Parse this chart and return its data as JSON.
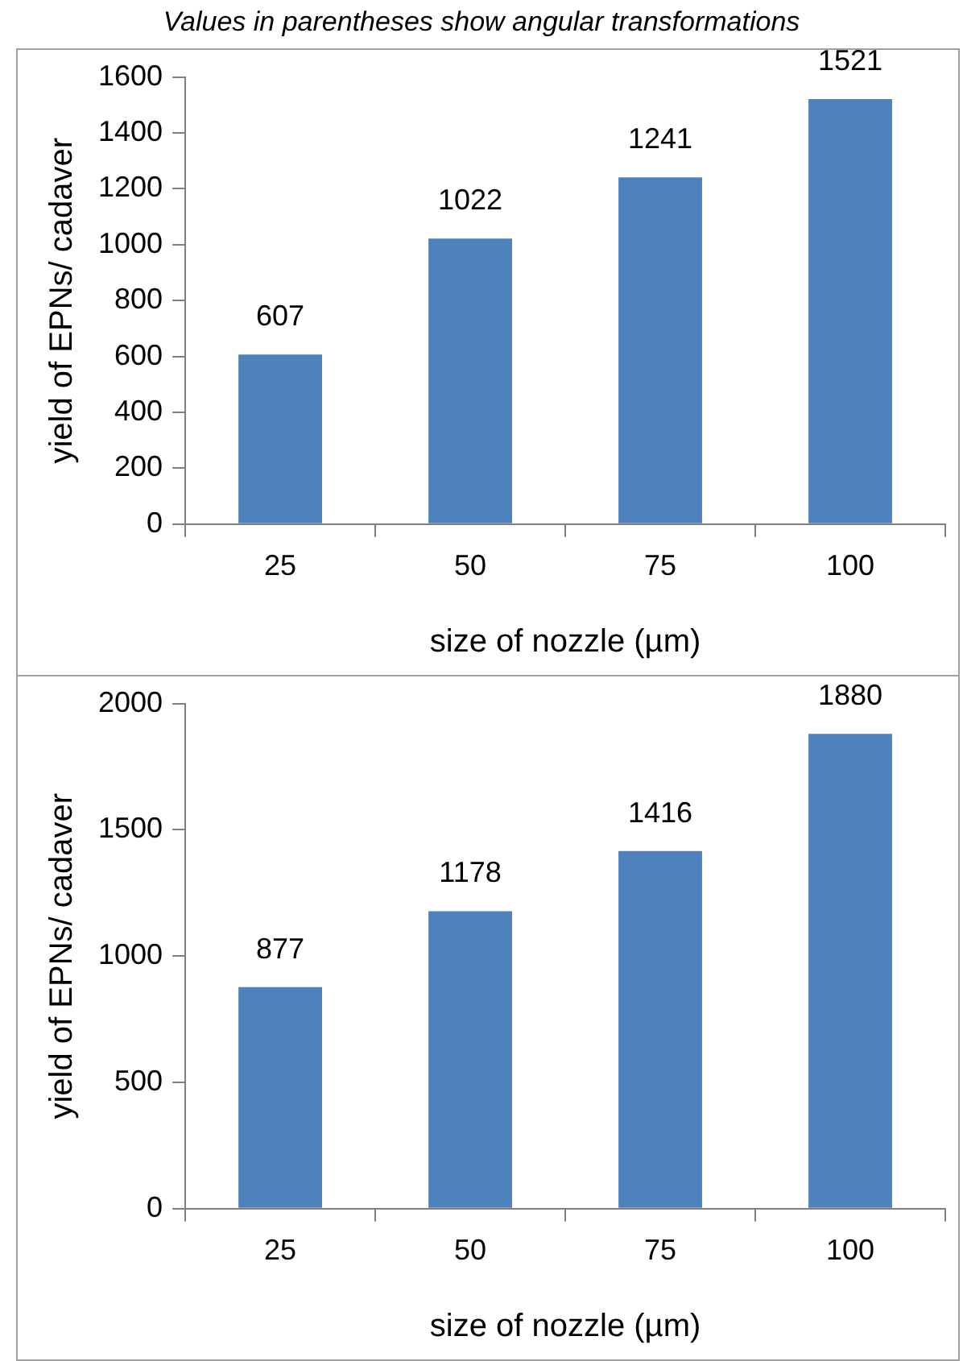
{
  "chart_data": [
    {
      "type": "bar",
      "annotations": [
        "Values in parentheses show angular transformations"
      ],
      "categories": [
        "25",
        "50",
        "75",
        "100"
      ],
      "values": [
        607,
        1022,
        1241,
        1521
      ],
      "color": "#4f81bd",
      "xlabel": "size of nozzle (µm)",
      "ylabel": "yield of EPNs/ cadaver",
      "ylim": [
        0,
        1600
      ],
      "yticks": [
        0,
        200,
        400,
        600,
        800,
        1000,
        1200,
        1400,
        1600
      ],
      "data_labels": true,
      "grid": false,
      "legend": false
    },
    {
      "type": "bar",
      "categories": [
        "25",
        "50",
        "75",
        "100"
      ],
      "values": [
        877,
        1178,
        1416,
        1880
      ],
      "color": "#4f81bd",
      "xlabel": "size of nozzle (µm)",
      "ylabel": "yield of EPNs/ cadaver",
      "ylim": [
        0,
        2000
      ],
      "yticks": [
        0,
        500,
        1000,
        1500,
        2000
      ],
      "data_labels": true,
      "grid": false,
      "legend": false
    }
  ]
}
